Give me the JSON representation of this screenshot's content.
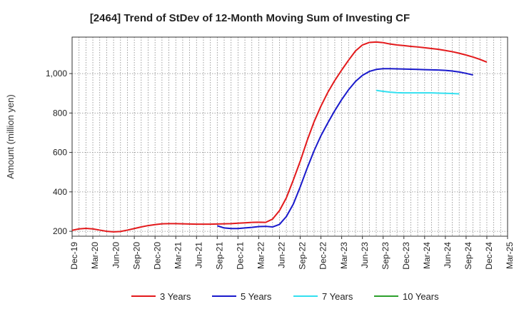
{
  "chart_data": {
    "type": "line",
    "title": "[2464]  Trend of StDev of 12-Month Moving Sum of Investing CF",
    "xlabel": "",
    "ylabel": "Amount (million yen)",
    "ylim": [
      175,
      1185
    ],
    "yticks": [
      200,
      400,
      600,
      800,
      1000
    ],
    "ytick_labels": [
      "200",
      "400",
      "600",
      "800",
      "1,000"
    ],
    "xtick_labels": [
      "Dec-19",
      "Mar-20",
      "Jun-20",
      "Sep-20",
      "Dec-20",
      "Mar-21",
      "Jun-21",
      "Sep-21",
      "Dec-21",
      "Mar-22",
      "Jun-22",
      "Sep-22",
      "Dec-22",
      "Mar-23",
      "Jun-23",
      "Sep-23",
      "Dec-23",
      "Mar-24",
      "Jun-24",
      "Sep-24",
      "Dec-24",
      "Mar-25"
    ],
    "x_months": [
      "2019-12",
      "2020-01",
      "2020-02",
      "2020-03",
      "2020-04",
      "2020-05",
      "2020-06",
      "2020-07",
      "2020-08",
      "2020-09",
      "2020-10",
      "2020-11",
      "2020-12",
      "2021-01",
      "2021-02",
      "2021-03",
      "2021-04",
      "2021-05",
      "2021-06",
      "2021-07",
      "2021-08",
      "2021-09",
      "2021-10",
      "2021-11",
      "2021-12",
      "2022-01",
      "2022-02",
      "2022-03",
      "2022-04",
      "2022-05",
      "2022-06",
      "2022-07",
      "2022-08",
      "2022-09",
      "2022-10",
      "2022-11",
      "2022-12",
      "2023-01",
      "2023-02",
      "2023-03",
      "2023-04",
      "2023-05",
      "2023-06",
      "2023-07",
      "2023-08",
      "2023-09",
      "2023-10",
      "2023-11",
      "2023-12",
      "2024-01",
      "2024-02",
      "2024-03",
      "2024-04",
      "2024-05",
      "2024-06",
      "2024-07",
      "2024-08",
      "2024-09",
      "2024-10",
      "2024-11",
      "2024-12",
      "2025-01",
      "2025-02",
      "2025-03"
    ],
    "grid": true,
    "legend_position": "bottom",
    "series": [
      {
        "name": "3 Years",
        "color": "#e31a1c",
        "start_month": "2019-12",
        "values": [
          205,
          212,
          215,
          212,
          206,
          200,
          197,
          199,
          206,
          214,
          222,
          229,
          234,
          238,
          239,
          239,
          238,
          237,
          236,
          236,
          236,
          237,
          238,
          239,
          241,
          243,
          245,
          246,
          245,
          262,
          305,
          370,
          460,
          555,
          660,
          755,
          835,
          905,
          965,
          1018,
          1068,
          1115,
          1145,
          1158,
          1160,
          1157,
          1150,
          1145,
          1142,
          1138,
          1135,
          1131,
          1127,
          1123,
          1117,
          1111,
          1103,
          1094,
          1084,
          1072,
          1058
        ]
      },
      {
        "name": "5 Years",
        "color": "#1a1acc",
        "start_month": "2021-09",
        "values": [
          228,
          217,
          214,
          214,
          217,
          220,
          224,
          225,
          222,
          235,
          275,
          338,
          425,
          520,
          608,
          685,
          750,
          812,
          868,
          918,
          960,
          991,
          1011,
          1021,
          1025,
          1025,
          1024,
          1023,
          1022,
          1021,
          1020,
          1019,
          1018,
          1016,
          1013,
          1008,
          1001,
          993
        ]
      },
      {
        "name": "7 Years",
        "color": "#33e0f0",
        "start_month": "2023-08",
        "values": [
          915,
          910,
          906,
          903,
          902,
          902,
          902,
          902,
          902,
          901,
          900,
          899,
          897
        ]
      },
      {
        "name": "10 Years",
        "color": "#2ca02c",
        "start_month": "2025-03",
        "values": []
      }
    ]
  }
}
